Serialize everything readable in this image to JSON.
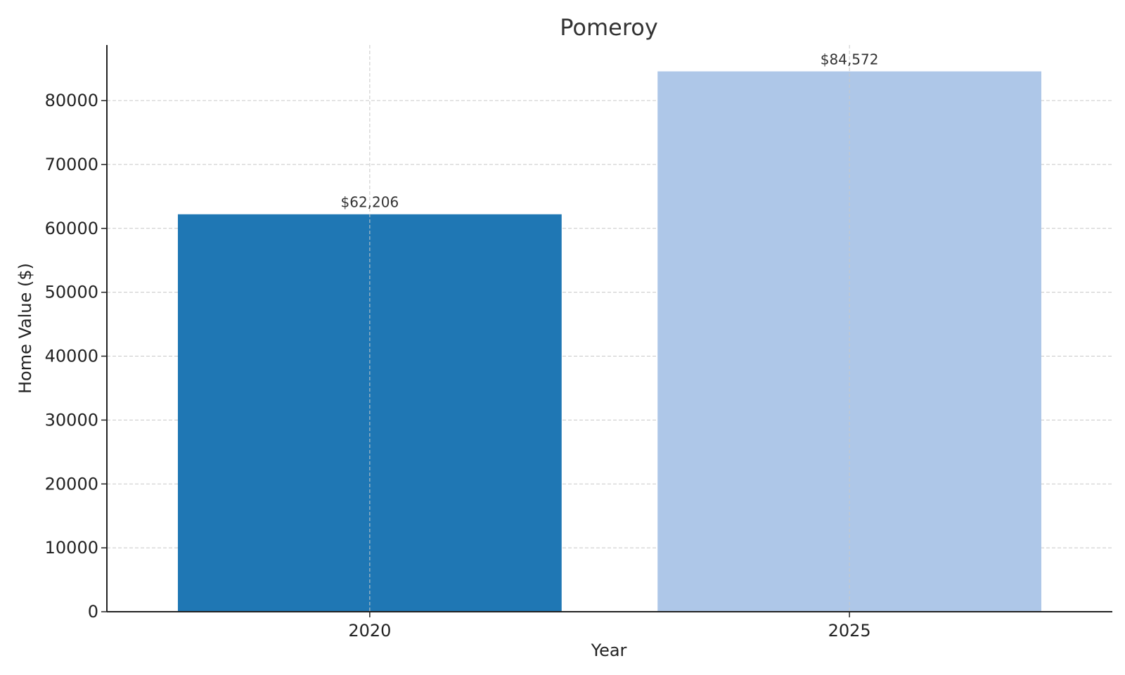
{
  "chart_data": {
    "type": "bar",
    "title": "Pomeroy",
    "xlabel": "Year",
    "ylabel": "Home Value ($)",
    "categories": [
      "2020",
      "2025"
    ],
    "values": [
      62206,
      84572
    ],
    "data_labels": [
      "$62,206",
      "$84,572"
    ],
    "bar_colors": [
      "#1f77b4",
      "#aec7e8"
    ],
    "ylim": [
      0,
      88700
    ],
    "yticks": [
      0,
      10000,
      20000,
      30000,
      40000,
      50000,
      60000,
      70000,
      80000
    ],
    "ytick_labels": [
      "0",
      "10000",
      "20000",
      "30000",
      "40000",
      "50000",
      "60000",
      "70000",
      "80000"
    ],
    "grid": true
  }
}
